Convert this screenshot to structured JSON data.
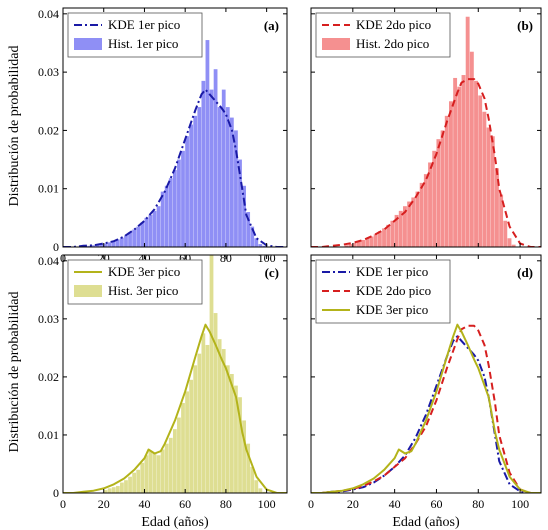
{
  "figure": {
    "shared_ylabel": "Distribución de probabilidad",
    "shared_xlabel": "Edad (años)"
  },
  "colors": {
    "blue_line": "#1a1aa6",
    "blue_hist": "#8f8ff5",
    "red_line": "#d61f1f",
    "red_hist": "#f59090",
    "olive_line": "#b3b31a",
    "olive_hist": "#dede92"
  },
  "chart_data": [
    {
      "type": "histogram+kde",
      "panel": "(a)",
      "xlim": [
        0,
        110
      ],
      "ylim": [
        0,
        0.041
      ],
      "xticks": [
        0,
        20,
        40,
        60,
        80,
        100
      ],
      "yticks": [
        0,
        0.01,
        0.02,
        0.03,
        0.04
      ],
      "ytick_labels": [
        "0",
        "0.01",
        "0.02",
        "0.03",
        "0.04"
      ],
      "legend_position": "top-left",
      "series": [
        {
          "name": "KDE 1er pico",
          "kind": "kde",
          "style": "dash-dot",
          "color": "#1a1aa6",
          "x": [
            0,
            5,
            10,
            15,
            20,
            25,
            30,
            35,
            40,
            45,
            50,
            55,
            60,
            65,
            68,
            70,
            72,
            75,
            78,
            80,
            83,
            85,
            88,
            90,
            95,
            100,
            105,
            110
          ],
          "y": [
            0,
            0,
            0.0002,
            0.0003,
            0.0006,
            0.001,
            0.0018,
            0.003,
            0.0045,
            0.0065,
            0.0095,
            0.0135,
            0.0185,
            0.0235,
            0.0262,
            0.027,
            0.0262,
            0.025,
            0.0238,
            0.0228,
            0.02,
            0.0165,
            0.01,
            0.0055,
            0.0015,
            0.0003,
            0,
            0
          ]
        },
        {
          "name": "Hist. 1er pico",
          "kind": "histogram",
          "color": "#8f8ff5",
          "bin_width": 2,
          "bin_starts": [
            10,
            12,
            14,
            16,
            18,
            20,
            22,
            24,
            26,
            28,
            30,
            32,
            34,
            36,
            38,
            40,
            42,
            44,
            46,
            48,
            50,
            52,
            54,
            56,
            58,
            60,
            62,
            64,
            66,
            68,
            70,
            72,
            74,
            76,
            78,
            80,
            82,
            84,
            86,
            88,
            90,
            92,
            94,
            96,
            98
          ],
          "values": [
            0.0002,
            0.0002,
            0.0003,
            0.0004,
            0.0005,
            0.0006,
            0.0008,
            0.001,
            0.0013,
            0.0016,
            0.002,
            0.0025,
            0.003,
            0.0035,
            0.0042,
            0.005,
            0.0055,
            0.0062,
            0.007,
            0.0095,
            0.0105,
            0.0118,
            0.0132,
            0.015,
            0.0165,
            0.019,
            0.021,
            0.0225,
            0.024,
            0.0285,
            0.0355,
            0.027,
            0.0305,
            0.024,
            0.027,
            0.024,
            0.0222,
            0.02,
            0.015,
            0.0105,
            0.006,
            0.0035,
            0.0015,
            0.0005,
            0.0002
          ]
        }
      ]
    },
    {
      "type": "histogram+kde",
      "panel": "(b)",
      "xlim": [
        0,
        110
      ],
      "ylim": [
        0,
        0.041
      ],
      "legend_position": "top-left",
      "series": [
        {
          "name": "KDE 2do pico",
          "kind": "kde",
          "style": "dashed",
          "color": "#d61f1f",
          "x": [
            0,
            5,
            10,
            15,
            20,
            25,
            30,
            35,
            40,
            45,
            50,
            55,
            60,
            65,
            70,
            72,
            75,
            78,
            80,
            83,
            85,
            88,
            90,
            95,
            100,
            105,
            110
          ],
          "y": [
            0,
            0,
            0.0002,
            0.0004,
            0.0007,
            0.0012,
            0.002,
            0.003,
            0.0045,
            0.006,
            0.0085,
            0.0115,
            0.016,
            0.0215,
            0.0265,
            0.0282,
            0.0288,
            0.0288,
            0.028,
            0.0255,
            0.022,
            0.0155,
            0.01,
            0.0035,
            0.0006,
            0,
            0
          ]
        },
        {
          "name": "Hist. 2do pico",
          "kind": "histogram",
          "color": "#f59090",
          "bin_width": 2,
          "bin_starts": [
            16,
            18,
            20,
            22,
            24,
            26,
            28,
            30,
            32,
            34,
            36,
            38,
            40,
            42,
            44,
            46,
            48,
            50,
            52,
            54,
            56,
            58,
            60,
            62,
            64,
            66,
            68,
            70,
            72,
            74,
            76,
            78,
            80,
            82,
            84,
            86,
            88,
            90,
            92,
            94,
            96
          ],
          "values": [
            0.0003,
            0.0005,
            0.0007,
            0.0009,
            0.0012,
            0.0015,
            0.0018,
            0.0022,
            0.0027,
            0.0032,
            0.0038,
            0.0045,
            0.0055,
            0.0062,
            0.007,
            0.0078,
            0.0085,
            0.0095,
            0.011,
            0.0125,
            0.0145,
            0.0165,
            0.0185,
            0.02,
            0.0225,
            0.025,
            0.029,
            0.0275,
            0.0295,
            0.0395,
            0.0335,
            0.0285,
            0.026,
            0.0232,
            0.0205,
            0.019,
            0.0135,
            0.009,
            0.0045,
            0.0015,
            0.0004
          ]
        }
      ]
    },
    {
      "type": "histogram+kde",
      "panel": "(c)",
      "xlim": [
        0,
        110
      ],
      "ylim": [
        0,
        0.041
      ],
      "xticks": [
        0,
        20,
        40,
        60,
        80,
        100
      ],
      "yticks": [
        0,
        0.01,
        0.02,
        0.03,
        0.04
      ],
      "ytick_labels": [
        "0",
        "0.01",
        "0.02",
        "0.03",
        "0.04"
      ],
      "legend_position": "top-left",
      "series": [
        {
          "name": "KDE 3er pico",
          "kind": "kde",
          "style": "solid",
          "color": "#b3b31a",
          "x": [
            0,
            5,
            10,
            15,
            20,
            25,
            30,
            35,
            40,
            42,
            45,
            48,
            50,
            55,
            60,
            65,
            68,
            70,
            72,
            75,
            78,
            80,
            85,
            88,
            90,
            95,
            100,
            105,
            110
          ],
          "y": [
            0,
            0,
            0.0002,
            0.0004,
            0.0008,
            0.0015,
            0.0025,
            0.004,
            0.006,
            0.0075,
            0.0068,
            0.0072,
            0.0085,
            0.0125,
            0.0175,
            0.0235,
            0.027,
            0.029,
            0.0278,
            0.0255,
            0.023,
            0.0215,
            0.0165,
            0.0105,
            0.0075,
            0.0028,
            0.0006,
            0,
            0
          ]
        },
        {
          "name": "Hist. 3er pico",
          "kind": "histogram",
          "color": "#dede92",
          "bin_width": 2,
          "bin_starts": [
            20,
            22,
            24,
            26,
            28,
            30,
            32,
            34,
            36,
            38,
            40,
            42,
            44,
            46,
            48,
            50,
            52,
            54,
            56,
            58,
            60,
            62,
            64,
            66,
            68,
            70,
            72,
            74,
            76,
            78,
            80,
            82,
            84,
            86,
            88,
            90,
            92,
            94,
            96,
            98
          ],
          "values": [
            0.0005,
            0.0008,
            0.001,
            0.0012,
            0.0018,
            0.0022,
            0.0028,
            0.0035,
            0.004,
            0.0052,
            0.0065,
            0.0072,
            0.0068,
            0.0065,
            0.0075,
            0.0085,
            0.0095,
            0.011,
            0.013,
            0.0155,
            0.0175,
            0.0195,
            0.022,
            0.024,
            0.0275,
            0.0255,
            0.041,
            0.031,
            0.0265,
            0.0248,
            0.022,
            0.0205,
            0.0185,
            0.0165,
            0.0125,
            0.0085,
            0.0045,
            0.0022,
            0.0008,
            0.0002
          ]
        }
      ]
    },
    {
      "type": "line",
      "panel": "(d)",
      "xlim": [
        0,
        110
      ],
      "ylim": [
        0,
        0.041
      ],
      "xticks": [
        0,
        20,
        40,
        60,
        80,
        100
      ],
      "legend_position": "top-left",
      "series": [
        {
          "name": "KDE 1er pico",
          "style": "dash-dot",
          "color": "#1a1aa6",
          "ref": 0
        },
        {
          "name": "KDE 2do pico",
          "style": "dashed",
          "color": "#d61f1f",
          "ref": 1
        },
        {
          "name": "KDE 3er pico",
          "style": "solid",
          "color": "#b3b31a",
          "ref": 2
        }
      ]
    }
  ]
}
